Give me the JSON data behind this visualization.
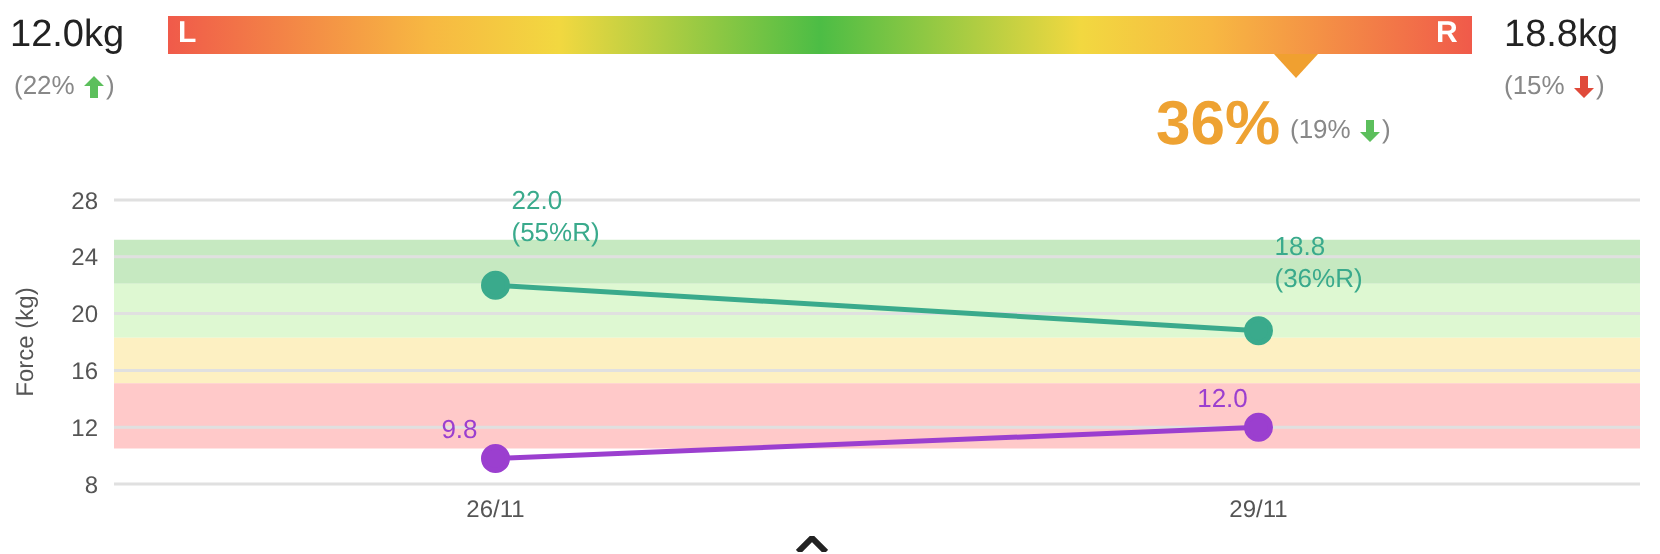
{
  "chart_data": [
    {
      "type": "other",
      "annotations": [
        "12.0kg",
        "(22% )",
        "L",
        "R",
        "18.8kg",
        "(15% )",
        "36%",
        "(19% )"
      ]
    },
    {
      "type": "line",
      "ylabel": "Force (kg)",
      "categories": [
        "26/11",
        "29/11"
      ],
      "series": [
        {
          "color": "#3aaa8c",
          "values": [
            22.0,
            18.8
          ],
          "value_labels": [
            "22.0\n(55%R)",
            "18.8\n(36%R)"
          ]
        },
        {
          "color": "#9b3fcf",
          "values": [
            9.8,
            12.0
          ],
          "value_labels": [
            "9.8",
            "12.0"
          ]
        }
      ],
      "ylim": [
        8,
        28
      ],
      "yticks": [
        8,
        12,
        16,
        20,
        24,
        28
      ],
      "grid": "y",
      "legend": false,
      "marker": "circle",
      "line_style": "solid",
      "bands": [
        {
          "axis": "y",
          "from": 22.1,
          "to": 25.2,
          "color": "#c6e9c1"
        },
        {
          "axis": "y",
          "from": 18.3,
          "to": 22.1,
          "color": "#def8d2"
        },
        {
          "axis": "y",
          "from": 15.1,
          "to": 18.3,
          "color": "#fdf0c2"
        },
        {
          "axis": "y",
          "from": 10.5,
          "to": 15.1,
          "color": "#ffc9c9"
        }
      ]
    }
  ]
}
